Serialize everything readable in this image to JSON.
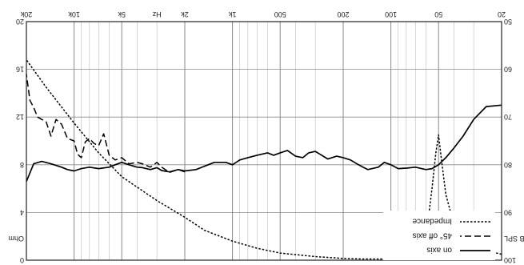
{
  "chart_data": {
    "type": "line",
    "title": "",
    "xlabel": "Hz",
    "x_scale": "log",
    "xlim": [
      20,
      20000
    ],
    "x_tick_labels": [
      "20",
      "50",
      "100",
      "200",
      "500",
      "1k",
      "2k",
      "Hz",
      "5k",
      "10k",
      "20k"
    ],
    "y_left": {
      "label": "dB SPL",
      "lim": [
        50,
        100
      ],
      "ticks": [
        "50",
        "60",
        "70",
        "80",
        "90",
        "100"
      ]
    },
    "y_right": {
      "label": "Ohm",
      "lim": [
        0,
        20
      ],
      "ticks": [
        "0",
        "4",
        "8",
        "12",
        "16",
        "20"
      ]
    },
    "grid": true,
    "legend_position": "bottom-right",
    "series": [
      {
        "name": "on axis",
        "axis": "left",
        "style": "solid",
        "color": "#000000",
        "x": [
          20,
          25,
          30,
          35,
          40,
          45,
          50,
          55,
          60,
          70,
          80,
          90,
          100,
          110,
          120,
          140,
          150,
          160,
          180,
          200,
          220,
          250,
          280,
          300,
          330,
          360,
          400,
          450,
          500,
          550,
          600,
          700,
          800,
          900,
          1000,
          1100,
          1300,
          1500,
          1700,
          2000,
          2200,
          2500,
          2800,
          3000,
          3300,
          3700,
          4000,
          4500,
          5000,
          5500,
          6000,
          7000,
          8000,
          9000,
          10000,
          11000,
          12000,
          14000,
          16000,
          18000,
          20000
        ],
        "y": [
          67.5,
          67.8,
          70.5,
          74,
          76.5,
          78.5,
          80,
          80.8,
          81,
          80.5,
          80.7,
          80.8,
          80,
          79.5,
          80.5,
          81,
          80.5,
          80,
          79,
          78.5,
          78.2,
          78.8,
          77.8,
          77.2,
          77.5,
          78.5,
          78.2,
          77,
          77.5,
          78,
          77.5,
          78,
          78.5,
          79,
          80,
          79.5,
          79.5,
          80.3,
          81,
          81.3,
          81,
          81.5,
          81.2,
          80.6,
          81,
          80.6,
          80.5,
          80,
          79.5,
          80,
          80.5,
          80.8,
          80.5,
          80.8,
          81.3,
          81,
          80.5,
          79.8,
          79.3,
          79.8,
          83.5
        ]
      },
      {
        "name": "45° off axis",
        "axis": "left",
        "style": "dashed",
        "color": "#000000",
        "x": [
          2000,
          2200,
          2500,
          2800,
          3000,
          3300,
          3700,
          4000,
          4500,
          5000,
          5500,
          6000,
          6500,
          7000,
          7500,
          8000,
          8500,
          9000,
          9500,
          10000,
          11000,
          12000,
          13000,
          14000,
          15000,
          16000,
          17000,
          18000,
          19000,
          20000
        ],
        "y": [
          81.5,
          81,
          81.6,
          80.5,
          79.5,
          80.5,
          79.8,
          79.5,
          79.8,
          78.5,
          79,
          78,
          73.5,
          76,
          75.5,
          74.5,
          75.2,
          78.5,
          77.8,
          75,
          74.5,
          71.5,
          70.5,
          74,
          71,
          70.5,
          70,
          68,
          66.5,
          61
        ]
      },
      {
        "name": "Impedance",
        "axis": "right",
        "style": "dotted",
        "color": "#000000",
        "x": [
          20,
          25,
          30,
          35,
          40,
          45,
          48,
          50,
          52,
          55,
          58,
          60,
          65,
          70,
          80,
          90,
          100,
          150,
          200,
          300,
          500,
          700,
          1000,
          1500,
          2000,
          3000,
          5000,
          7000,
          10000,
          15000,
          20000
        ],
        "y": [
          0.5,
          0.8,
          1.3,
          2.0,
          3.0,
          5.5,
          8.5,
          10.5,
          9.0,
          6.0,
          3.5,
          2.2,
          1.0,
          0.5,
          0.2,
          0.1,
          0.1,
          0.1,
          0.15,
          0.3,
          0.6,
          1.0,
          1.6,
          2.5,
          3.6,
          5.0,
          7.0,
          9.0,
          11.5,
          14.5,
          16.8
        ]
      }
    ]
  }
}
